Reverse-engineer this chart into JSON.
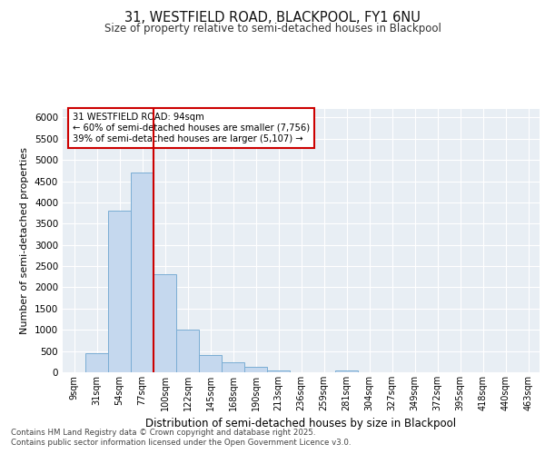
{
  "title_line1": "31, WESTFIELD ROAD, BLACKPOOL, FY1 6NU",
  "title_line2": "Size of property relative to semi-detached houses in Blackpool",
  "xlabel": "Distribution of semi-detached houses by size in Blackpool",
  "ylabel": "Number of semi-detached properties",
  "categories": [
    "9sqm",
    "31sqm",
    "54sqm",
    "77sqm",
    "100sqm",
    "122sqm",
    "145sqm",
    "168sqm",
    "190sqm",
    "213sqm",
    "236sqm",
    "259sqm",
    "281sqm",
    "304sqm",
    "327sqm",
    "349sqm",
    "372sqm",
    "395sqm",
    "418sqm",
    "440sqm",
    "463sqm"
  ],
  "values": [
    10,
    450,
    3800,
    4700,
    2300,
    1000,
    400,
    230,
    130,
    50,
    5,
    5,
    50,
    0,
    0,
    0,
    0,
    0,
    0,
    0,
    0
  ],
  "bar_color": "#c5d8ee",
  "bar_edge_color": "#7aadd4",
  "vline_index": 4,
  "vline_color": "#cc0000",
  "property_label": "31 WESTFIELD ROAD: 94sqm",
  "annotation_smaller": "← 60% of semi-detached houses are smaller (7,756)",
  "annotation_larger": "39% of semi-detached houses are larger (5,107) →",
  "annotation_box_color": "#ffffff",
  "annotation_box_edge": "#cc0000",
  "ylim": [
    0,
    6200
  ],
  "yticks": [
    0,
    500,
    1000,
    1500,
    2000,
    2500,
    3000,
    3500,
    4000,
    4500,
    5000,
    5500,
    6000
  ],
  "bg_color": "#e8eef4",
  "footnote_line1": "Contains HM Land Registry data © Crown copyright and database right 2025.",
  "footnote_line2": "Contains public sector information licensed under the Open Government Licence v3.0."
}
